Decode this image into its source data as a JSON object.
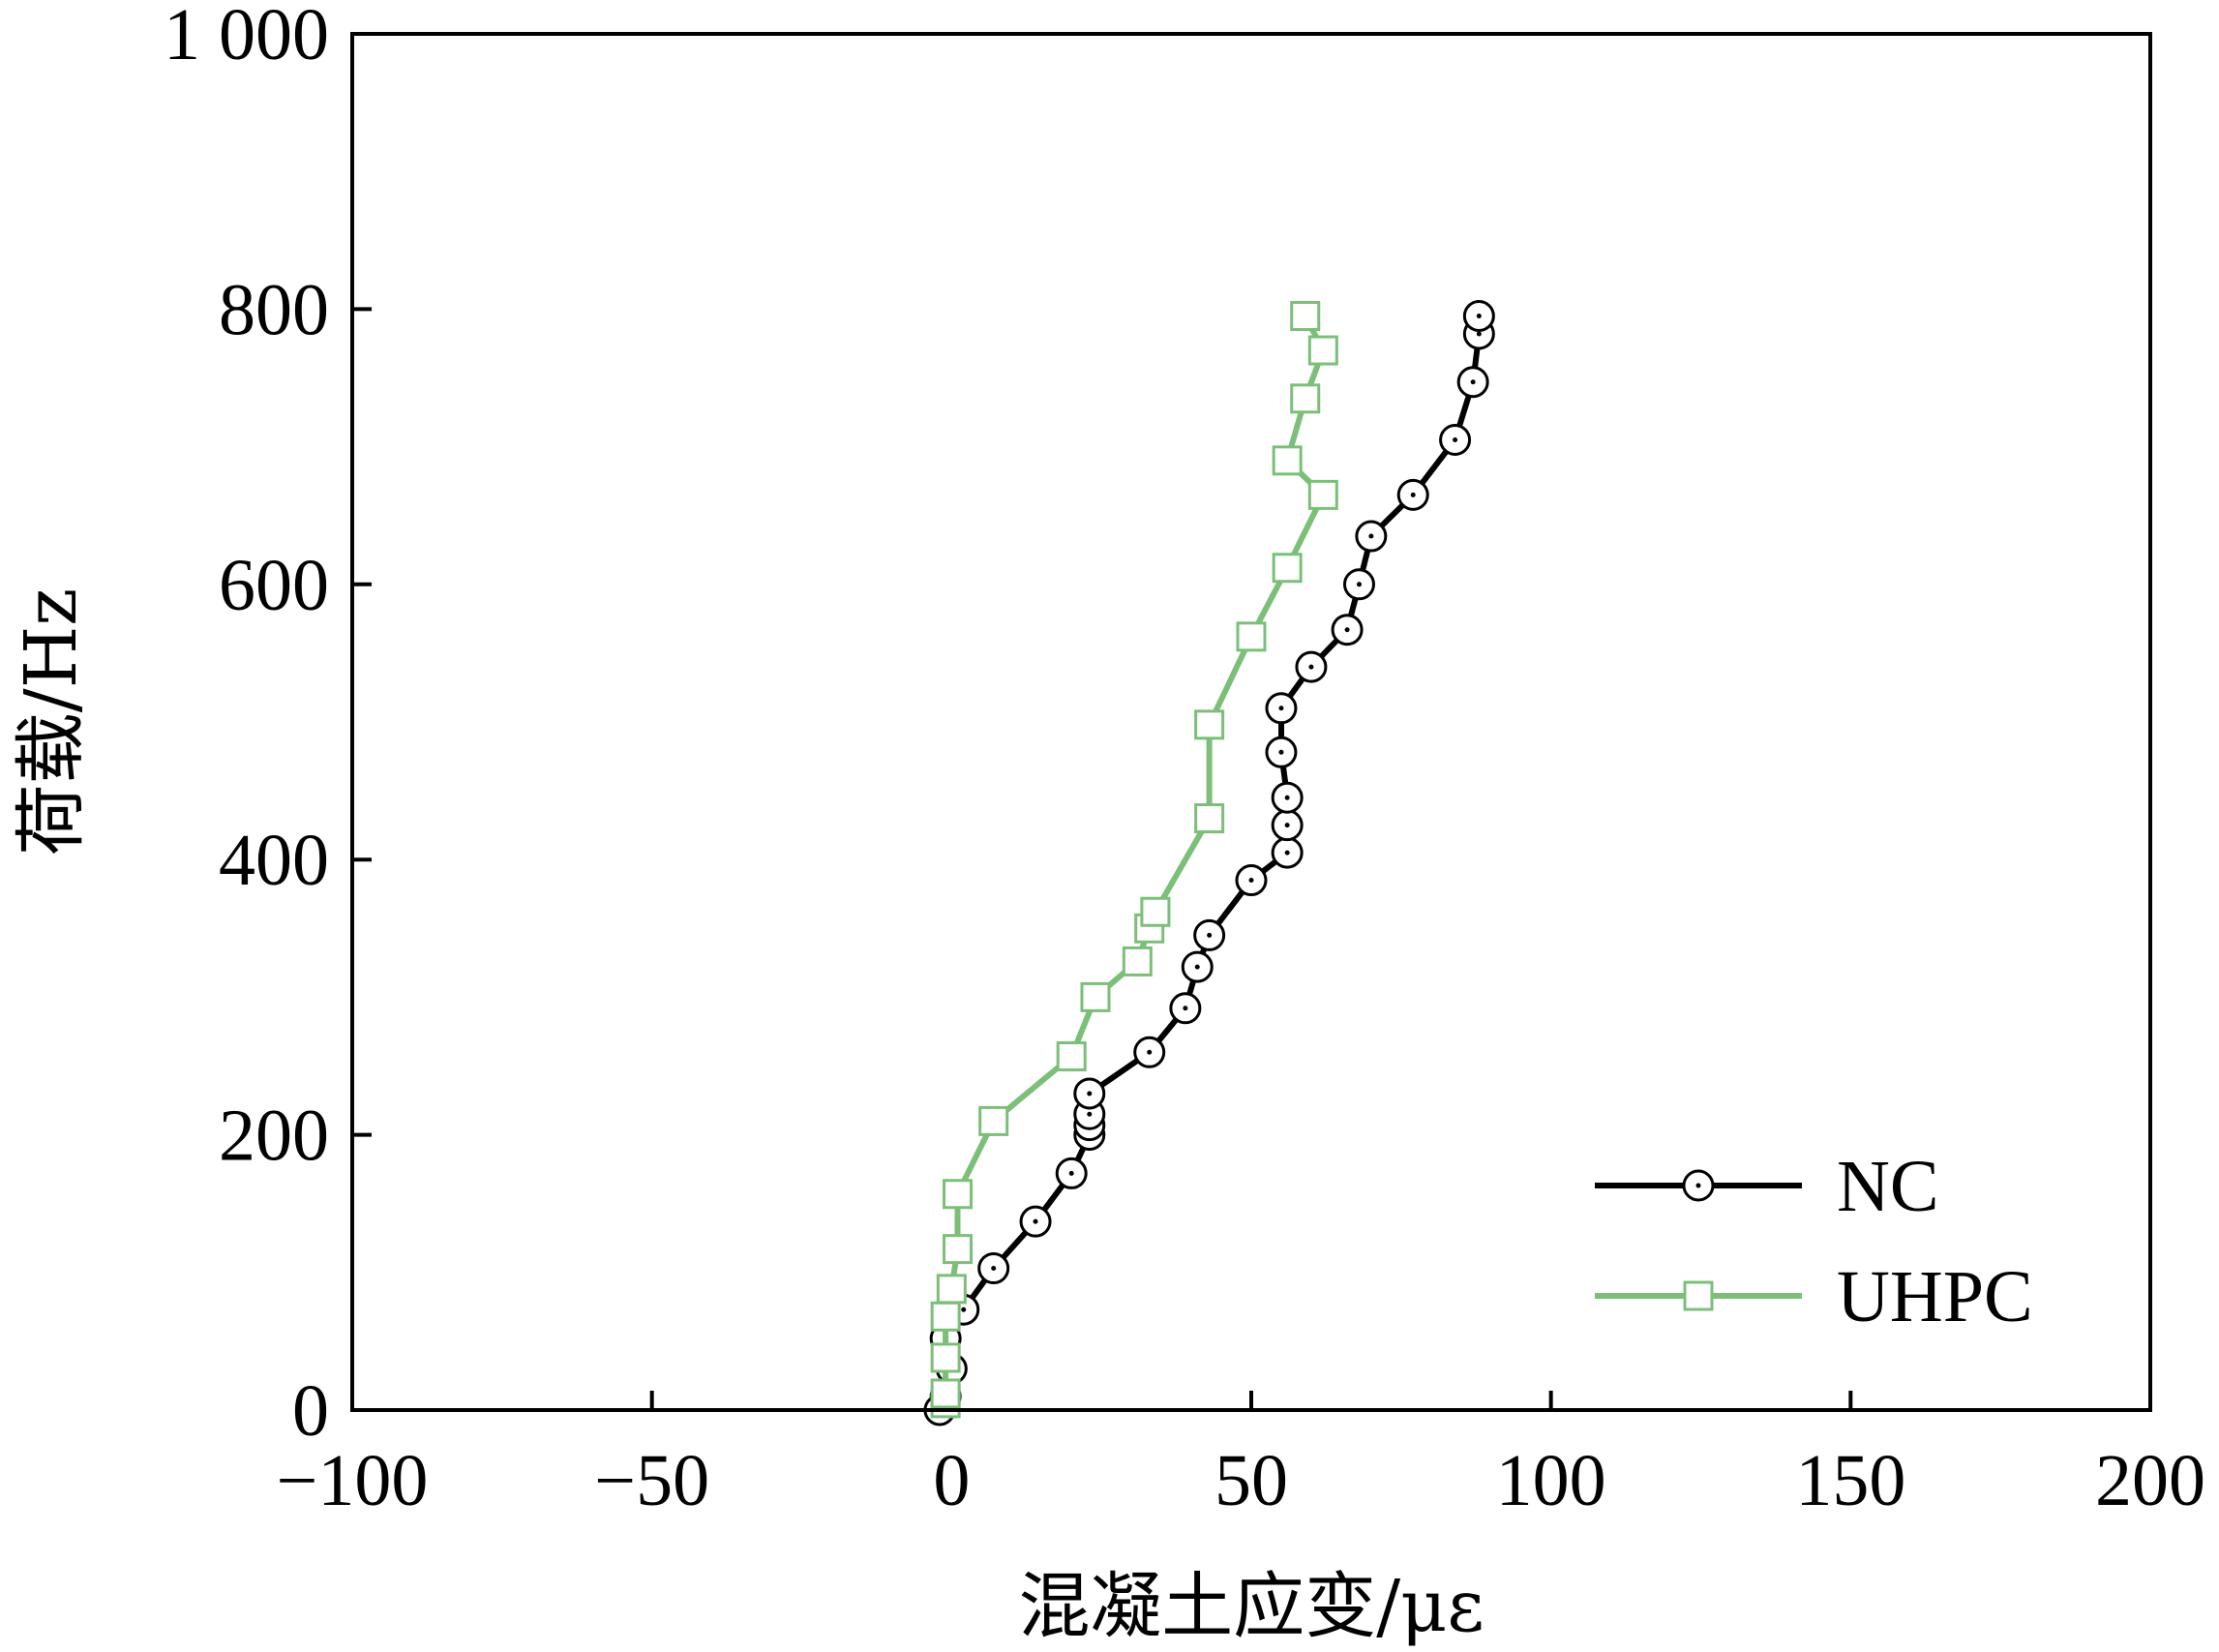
{
  "chart_data": {
    "type": "line",
    "title": "",
    "xlabel": "混凝土应变/με",
    "ylabel": "荷载/Hz",
    "xlim": [
      -100,
      200
    ],
    "ylim": [
      0,
      1000
    ],
    "xticks": [
      -100,
      -50,
      0,
      50,
      100,
      150,
      200
    ],
    "yticks": [
      0,
      200,
      400,
      600,
      800,
      1000
    ],
    "xtick_labels": [
      "−100",
      "−50",
      "0",
      "50",
      "100",
      "150",
      "200"
    ],
    "ytick_labels": [
      "0",
      "200",
      "400",
      "600",
      "800",
      "1 000"
    ],
    "grid": false,
    "legend_position": "bottom-right",
    "series": [
      {
        "name": "NC",
        "color": "#000000",
        "marker": "circle",
        "points": [
          [
            -2,
            0
          ],
          [
            -1,
            10
          ],
          [
            0,
            30
          ],
          [
            -1,
            52
          ],
          [
            2,
            73
          ],
          [
            7,
            103
          ],
          [
            14,
            137
          ],
          [
            20,
            172
          ],
          [
            23,
            200
          ],
          [
            23,
            207
          ],
          [
            23,
            215
          ],
          [
            23,
            230
          ],
          [
            33,
            260
          ],
          [
            39,
            292
          ],
          [
            41,
            322
          ],
          [
            43,
            345
          ],
          [
            50,
            385
          ],
          [
            56,
            405
          ],
          [
            56,
            425
          ],
          [
            56,
            445
          ],
          [
            55,
            478
          ],
          [
            55,
            510
          ],
          [
            60,
            540
          ],
          [
            66,
            567
          ],
          [
            68,
            600
          ],
          [
            70,
            635
          ],
          [
            77,
            665
          ],
          [
            84,
            705
          ],
          [
            87,
            747
          ],
          [
            88,
            782
          ],
          [
            88,
            795
          ]
        ]
      },
      {
        "name": "UHPC",
        "color": "#7bbf78",
        "marker": "square",
        "points": [
          [
            -1,
            5
          ],
          [
            -1,
            12
          ],
          [
            -1,
            38
          ],
          [
            -1,
            68
          ],
          [
            0,
            88
          ],
          [
            1,
            117
          ],
          [
            1,
            157
          ],
          [
            7,
            210
          ],
          [
            20,
            257
          ],
          [
            24,
            300
          ],
          [
            31,
            326
          ],
          [
            33,
            350
          ],
          [
            34,
            362
          ],
          [
            43,
            430
          ],
          [
            43,
            498
          ],
          [
            50,
            562
          ],
          [
            56,
            612
          ],
          [
            62,
            665
          ],
          [
            56,
            690
          ],
          [
            59,
            735
          ],
          [
            62,
            770
          ],
          [
            59,
            795
          ]
        ]
      }
    ]
  }
}
